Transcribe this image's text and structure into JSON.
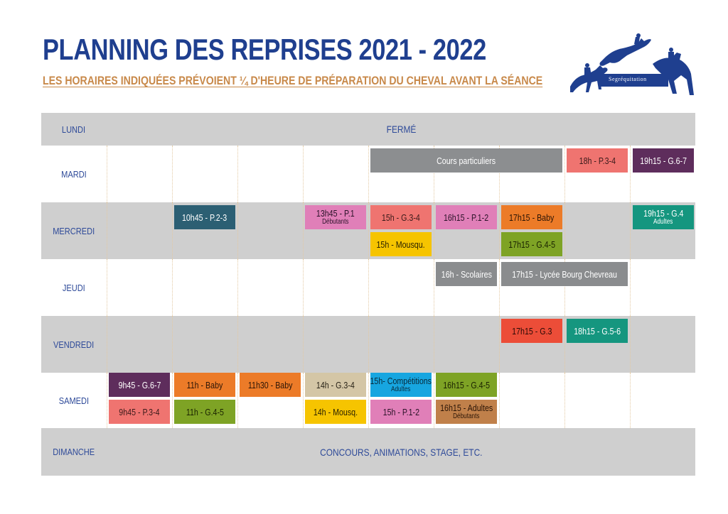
{
  "title": "PLANNING DES REPRISES 2021 - 2022",
  "subtitle": "LES HORAIRES INDIQUÉES PRÉVOIENT ¼ D'HEURE DE PRÉPARATION DU CHEVAL AVANT LA SÉANCE",
  "logo": {
    "text": "Segréquitation",
    "color": "#1f3f8f"
  },
  "days": {
    "lundi": {
      "label": "LUNDI",
      "note": "FERMÉ"
    },
    "mardi": {
      "label": "MARDI",
      "slots": [
        "Cours particuliers",
        "18h - P.3-4",
        "19h15 - G.6-7"
      ]
    },
    "mercredi": {
      "label": "MERCREDI",
      "slots": [
        "10h45 - P.2-3",
        "13h45 - P.1",
        "Débutants",
        "15h - G.3-4",
        "16h15 - P.1-2",
        "17h15 - Baby",
        "19h15 - G.4",
        "Adultes",
        "15h - Mousqu.",
        "17h15 - G.4-5"
      ]
    },
    "jeudi": {
      "label": "JEUDI",
      "slots": [
        "16h - Scolaires",
        "17h15 - Lycée Bourg Chevreau"
      ]
    },
    "vendredi": {
      "label": "VENDREDI",
      "slots": [
        "17h15 - G.3",
        "18h15 - G.5-6"
      ]
    },
    "samedi": {
      "label": "SAMEDI",
      "slots": [
        "9h45 - G.6-7",
        "11h - Baby",
        "11h30 - Baby",
        "14h - G.3-4",
        "15h- Compétitions",
        "Adultes",
        "16h15 - G.4-5",
        "9h45 - P.3-4",
        "11h - G.4-5",
        "14h - Mousq.",
        "15h - P.1-2",
        "16h15 - Adultes",
        "Débutants"
      ]
    },
    "dimanche": {
      "label": "DIMANCHE",
      "note": "CONCOURS, ANIMATIONS, STAGE, ETC."
    }
  },
  "colors": {
    "title": "#1f3f8f",
    "subtitle": "#c8894a",
    "row_gray": "#cfcfcf",
    "day_label": "#2e4a99"
  }
}
